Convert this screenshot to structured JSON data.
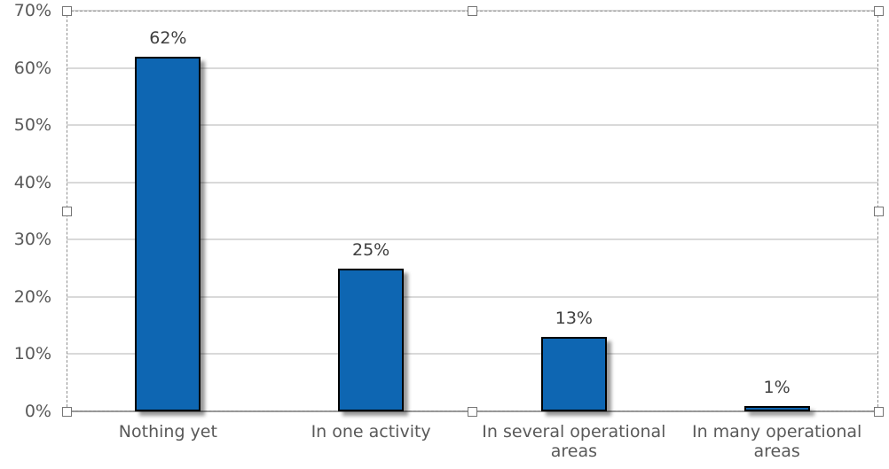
{
  "chart_data": {
    "type": "bar",
    "title": "",
    "xlabel": "",
    "ylabel": "",
    "categories": [
      "Nothing yet",
      "In one activity",
      "In several operational areas",
      "In many operational areas"
    ],
    "values": [
      62,
      25,
      13,
      1
    ],
    "data_labels": [
      "62%",
      "25%",
      "13%",
      "1%"
    ],
    "ylim": [
      0,
      70
    ],
    "ytick_values": [
      70,
      60,
      50,
      40,
      30,
      20,
      10,
      0
    ],
    "ytick_labels": [
      "70%",
      "60%",
      "50%",
      "40%",
      "30%",
      "20%",
      "10%",
      "0%"
    ],
    "grid": true,
    "legend": false,
    "colors": {
      "bar_fill": "#0E66B2",
      "bar_border": "#000000",
      "gridline": "#D9D9D9",
      "axis_line": "#9B9B9B",
      "tick_label": "#595959",
      "category_label": "#595959",
      "data_label": "#3F3F3F",
      "background": "#FFFFFF"
    },
    "editor_state": {
      "plot_area_selected": true,
      "selection_handle_count": 8
    }
  }
}
